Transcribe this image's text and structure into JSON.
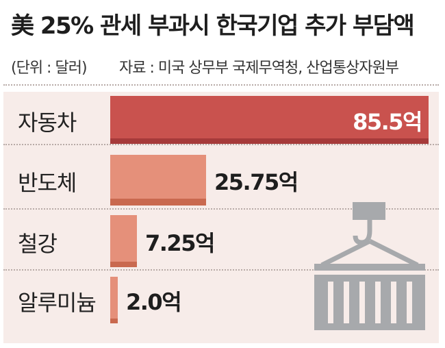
{
  "header": {
    "title": "美 25% 관세 부과시 한국기업 추가 부담액",
    "unit": "(단위 : 달러)",
    "source": "자료 : 미국 상무부 국제무역청, 산업통상자원부"
  },
  "colors": {
    "bar_top": "#c9524e",
    "bar_top_base": "#a63a3a",
    "bar_other": "#e5907a",
    "bar_other_base": "#c9694f",
    "panel": "#f7ece9",
    "icon": "#a7a9ac"
  },
  "icon": "shipping-container-crane-icon",
  "chart_data": {
    "type": "bar",
    "orientation": "horizontal",
    "categories": [
      "자동차",
      "반도체",
      "철강",
      "알루미늄"
    ],
    "values": [
      85.5,
      25.75,
      7.25,
      2.0
    ],
    "value_labels": [
      "85.5억",
      "25.75억",
      "7.25억",
      "2.0억"
    ],
    "title": "美 25% 관세 부과시 한국기업 추가 부담액",
    "xlabel": "",
    "ylabel": "",
    "grid": false,
    "legend": "none"
  }
}
